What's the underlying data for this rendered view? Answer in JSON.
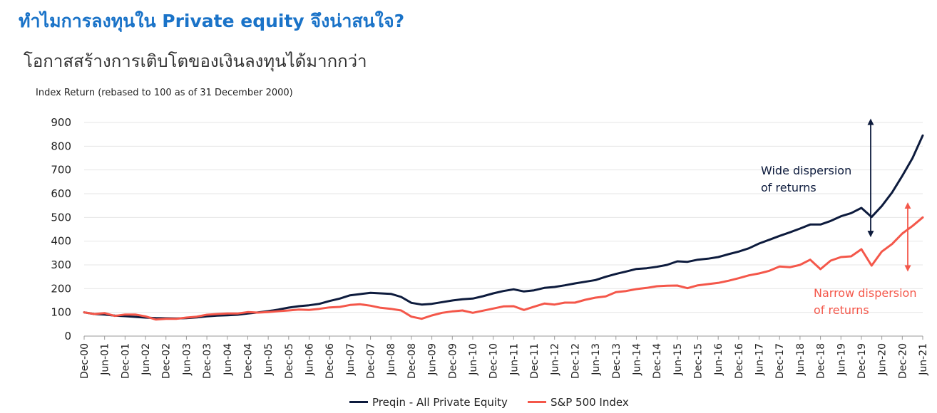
{
  "title": "ทำไมการลงทุนใน Private equity จึงน่าสนใจ?",
  "subtitle": "โอกาสสร้างการเติบโตของเงินลงทุนได้มากกว่า",
  "colors": {
    "title": "#1a73c8",
    "pe": "#0d1b3d",
    "sp": "#f4574a",
    "grid": "#e6e6e6"
  },
  "chart_data": {
    "type": "line",
    "ylabel": "Index Return (rebased to 100 as of 31 December 2000)",
    "ylim": [
      0,
      900
    ],
    "yticks": [
      0,
      100,
      200,
      300,
      400,
      500,
      600,
      700,
      800,
      900
    ],
    "grid": true,
    "legend_position": "bottom",
    "categories": [
      "Dec-00",
      "Jun-01",
      "Dec-01",
      "Jun-02",
      "Dec-02",
      "Jun-03",
      "Dec-03",
      "Jun-04",
      "Dec-04",
      "Jun-05",
      "Dec-05",
      "Jun-06",
      "Dec-06",
      "Jun-07",
      "Dec-07",
      "Jun-08",
      "Dec-08",
      "Jun-09",
      "Dec-09",
      "Jun-10",
      "Dec-10",
      "Jun-11",
      "Dec-11",
      "Jun-12",
      "Dec-12",
      "Jun-13",
      "Dec-13",
      "Jun-14",
      "Dec-14",
      "Jun-15",
      "Dec-15",
      "Jun-16",
      "Dec-16",
      "Jun-17",
      "Dec-17",
      "Jun-18",
      "Dec-18",
      "Jun-19",
      "Dec-19",
      "Jun-20",
      "Dec-20",
      "Jun-21"
    ],
    "x": [
      "Dec-00",
      "Mar-01",
      "Jun-01",
      "Sep-01",
      "Dec-01",
      "Mar-02",
      "Jun-02",
      "Sep-02",
      "Dec-02",
      "Mar-03",
      "Jun-03",
      "Sep-03",
      "Dec-03",
      "Mar-04",
      "Jun-04",
      "Sep-04",
      "Dec-04",
      "Mar-05",
      "Jun-05",
      "Sep-05",
      "Dec-05",
      "Mar-06",
      "Jun-06",
      "Sep-06",
      "Dec-06",
      "Mar-07",
      "Jun-07",
      "Sep-07",
      "Dec-07",
      "Mar-08",
      "Jun-08",
      "Sep-08",
      "Dec-08",
      "Mar-09",
      "Jun-09",
      "Sep-09",
      "Dec-09",
      "Mar-10",
      "Jun-10",
      "Sep-10",
      "Dec-10",
      "Mar-11",
      "Jun-11",
      "Sep-11",
      "Dec-11",
      "Mar-12",
      "Jun-12",
      "Sep-12",
      "Dec-12",
      "Mar-13",
      "Jun-13",
      "Sep-13",
      "Dec-13",
      "Mar-14",
      "Jun-14",
      "Sep-14",
      "Dec-14",
      "Mar-15",
      "Jun-15",
      "Sep-15",
      "Dec-15",
      "Mar-16",
      "Jun-16",
      "Sep-16",
      "Dec-16",
      "Mar-17",
      "Jun-17",
      "Sep-17",
      "Dec-17",
      "Mar-18",
      "Jun-18",
      "Sep-18",
      "Dec-18",
      "Mar-19",
      "Jun-19",
      "Sep-19",
      "Dec-19",
      "Mar-20",
      "Jun-20",
      "Sep-20",
      "Dec-20",
      "Mar-21",
      "Jun-21"
    ],
    "series": [
      {
        "name": "Preqin - All Private Equity",
        "values": [
          100,
          93,
          91,
          86,
          84,
          81,
          78,
          76,
          75,
          74,
          76,
          79,
          83,
          86,
          88,
          90,
          95,
          100,
          105,
          112,
          120,
          126,
          130,
          136,
          148,
          158,
          172,
          177,
          182,
          180,
          178,
          165,
          140,
          133,
          136,
          143,
          150,
          155,
          158,
          168,
          180,
          190,
          197,
          188,
          193,
          203,
          207,
          214,
          222,
          229,
          236,
          250,
          262,
          272,
          283,
          286,
          292,
          300,
          315,
          313,
          322,
          326,
          333,
          345,
          356,
          370,
          390,
          406,
          422,
          437,
          453,
          470,
          470,
          485,
          505,
          518,
          540,
          502,
          548,
          605,
          675,
          750,
          845
        ]
      },
      {
        "name": "S&P 500 Index",
        "values": [
          100,
          93,
          97,
          85,
          91,
          91,
          83,
          70,
          73,
          73,
          78,
          82,
          90,
          93,
          95,
          95,
          101,
          99,
          101,
          105,
          108,
          112,
          110,
          115,
          121,
          123,
          131,
          134,
          128,
          119,
          115,
          108,
          82,
          73,
          87,
          98,
          104,
          108,
          98,
          107,
          116,
          125,
          126,
          110,
          124,
          137,
          133,
          141,
          141,
          153,
          162,
          167,
          185,
          190,
          198,
          203,
          210,
          212,
          213,
          202,
          214,
          219,
          224,
          233,
          244,
          256,
          264,
          275,
          293,
          290,
          300,
          322,
          282,
          318,
          333,
          336,
          366,
          297,
          356,
          388,
          432,
          464,
          500
        ]
      }
    ],
    "annotations": [
      {
        "text_lines": [
          "Wide dispersion",
          "of returns"
        ],
        "color": "#0d1b3d"
      },
      {
        "text_lines": [
          "Narrow dispersion",
          "of returns"
        ],
        "color": "#f4574a"
      }
    ]
  }
}
